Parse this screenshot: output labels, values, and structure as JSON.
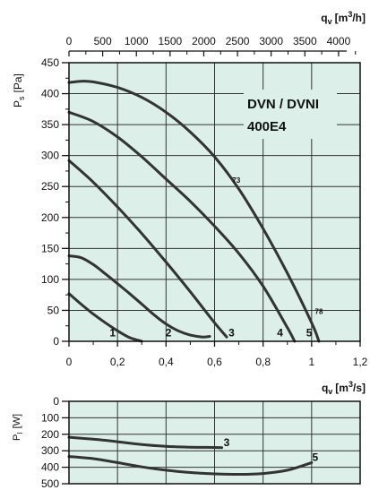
{
  "chart_data": [
    {
      "type": "line",
      "product_title": "DVN / DVNI",
      "product_model": "400E4",
      "top_axis": {
        "label_q": "q",
        "label_sub": "v",
        "label_unit_open": "[m",
        "label_unit_sup": "3",
        "label_unit_close": "/h]",
        "ticks": [
          "0",
          "500",
          "1000",
          "1500",
          "2000",
          "2500",
          "3000",
          "3500",
          "4000"
        ],
        "tick_values": [
          0,
          500,
          1000,
          1500,
          2000,
          2500,
          3000,
          3500,
          4000
        ]
      },
      "x_axis": {
        "label_q": "q",
        "label_sub": "v",
        "label_unit_open": "[m",
        "label_unit_sup": "3",
        "label_unit_close": "/s]",
        "ticks": [
          "0",
          "0,2",
          "0,4",
          "0,6",
          "0,8",
          "1",
          "1,2"
        ],
        "tick_values": [
          0,
          0.2,
          0.4,
          0.6,
          0.8,
          1.0,
          1.2
        ],
        "range": [
          0,
          1.2
        ]
      },
      "y_axis": {
        "label_main": "P",
        "label_sub": "s",
        "label_unit": "[Pa]",
        "ticks": [
          "0",
          "50",
          "100",
          "150",
          "200",
          "250",
          "300",
          "350",
          "400",
          "450"
        ],
        "tick_values": [
          0,
          50,
          100,
          150,
          200,
          250,
          300,
          350,
          400,
          450
        ],
        "range": [
          0,
          450
        ]
      },
      "grid": true,
      "background_color": "#dcefe9",
      "line_color": "#333333",
      "series": [
        {
          "name": "1",
          "x": [
            0,
            0.05,
            0.1,
            0.15,
            0.2,
            0.25,
            0.3
          ],
          "y": [
            77,
            60,
            44,
            30,
            17,
            6,
            0
          ]
        },
        {
          "name": "2",
          "x": [
            0,
            0.05,
            0.1,
            0.15,
            0.2,
            0.25,
            0.3,
            0.35,
            0.4,
            0.45,
            0.5,
            0.55,
            0.58
          ],
          "y": [
            138,
            135,
            124,
            109,
            93,
            77,
            60,
            43,
            28,
            17,
            10,
            7,
            8
          ]
        },
        {
          "name": "3",
          "x": [
            0,
            0.1,
            0.2,
            0.3,
            0.4,
            0.5,
            0.6,
            0.65
          ],
          "y": [
            292,
            257,
            217,
            174,
            128,
            80,
            30,
            7
          ]
        },
        {
          "name": "4",
          "x": [
            0,
            0.1,
            0.2,
            0.3,
            0.4,
            0.5,
            0.6,
            0.7,
            0.8,
            0.9,
            0.93
          ],
          "y": [
            370,
            355,
            330,
            298,
            262,
            226,
            186,
            142,
            89,
            22,
            0
          ]
        },
        {
          "name": "5",
          "x": [
            0,
            0.05,
            0.1,
            0.2,
            0.3,
            0.4,
            0.5,
            0.6,
            0.7,
            0.8,
            0.9,
            1.0,
            1.03
          ],
          "y": [
            418,
            420,
            419,
            410,
            394,
            370,
            338,
            298,
            246,
            182,
            110,
            30,
            0
          ]
        }
      ],
      "annotations": [
        {
          "text": "1",
          "x": 0.18,
          "y": 8
        },
        {
          "text": "2",
          "x": 0.41,
          "y": 8
        },
        {
          "text": "3",
          "x": 0.67,
          "y": 8
        },
        {
          "text": "4",
          "x": 0.87,
          "y": 8
        },
        {
          "text": "5",
          "x": 0.99,
          "y": 8
        },
        {
          "text": "73",
          "x": 0.69,
          "y": 256
        },
        {
          "text": "78",
          "x": 1.03,
          "y": 44
        }
      ]
    },
    {
      "type": "line",
      "y_axis": {
        "label_main": "P",
        "label_sub": "I",
        "label_unit": "[W]",
        "ticks": [
          "0",
          "100",
          "200",
          "300",
          "400",
          "500"
        ],
        "tick_values": [
          0,
          100,
          200,
          300,
          400,
          500
        ],
        "range": [
          0,
          500
        ],
        "inverted": true
      },
      "x_axis": {
        "range": [
          0,
          1.2
        ]
      },
      "grid": true,
      "background_color": "#dcefe9",
      "line_color": "#333333",
      "series": [
        {
          "name": "3",
          "x": [
            0,
            0.1,
            0.2,
            0.3,
            0.4,
            0.5,
            0.6,
            0.63
          ],
          "y": [
            218,
            230,
            245,
            262,
            273,
            278,
            280,
            281
          ]
        },
        {
          "name": "5",
          "x": [
            0,
            0.1,
            0.2,
            0.3,
            0.4,
            0.5,
            0.6,
            0.7,
            0.8,
            0.9,
            1.0
          ],
          "y": [
            335,
            348,
            372,
            398,
            418,
            432,
            440,
            443,
            438,
            418,
            372
          ]
        }
      ],
      "annotations": [
        {
          "text": "3",
          "x": 0.635,
          "y": 250
        },
        {
          "text": "5",
          "x": 1.0,
          "y": 340
        }
      ]
    }
  ]
}
